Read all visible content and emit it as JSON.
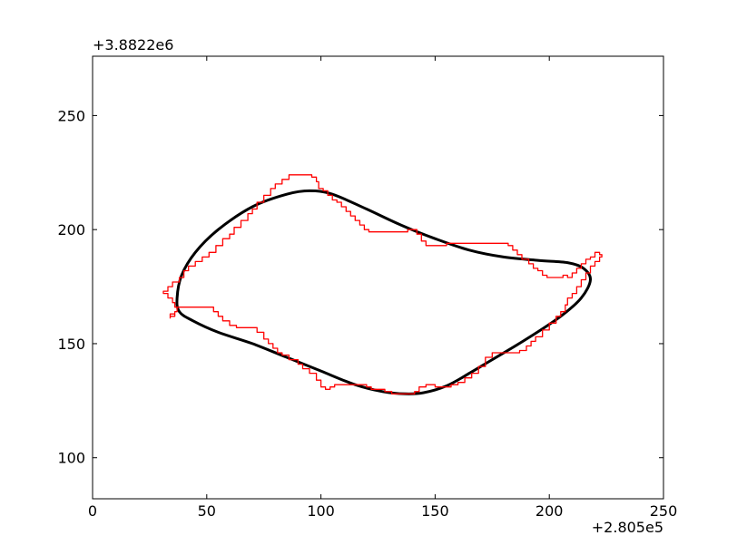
{
  "chart_data": {
    "type": "line",
    "title": "",
    "xlabel": "",
    "ylabel": "",
    "x_offset_label": "+2.805e5",
    "y_offset_label": "+3.8822e6",
    "xlim": [
      0,
      250
    ],
    "ylim": [
      82,
      276
    ],
    "x_ticks": [
      0,
      50,
      100,
      150,
      200,
      250
    ],
    "x_tick_labels": [
      "0",
      "50",
      "100",
      "150",
      "200",
      "250"
    ],
    "y_ticks": [
      100,
      150,
      200,
      250
    ],
    "y_tick_labels": [
      "100",
      "150",
      "200",
      "250"
    ],
    "grid": false,
    "series": [
      {
        "style": "smooth-closed",
        "color": "#000000",
        "points": [
          [
            37,
            170
          ],
          [
            39,
            180
          ],
          [
            45,
            190
          ],
          [
            55,
            200
          ],
          [
            70,
            210
          ],
          [
            85,
            215.5
          ],
          [
            95,
            217
          ],
          [
            105,
            215.5
          ],
          [
            120,
            209
          ],
          [
            135,
            202
          ],
          [
            150,
            196
          ],
          [
            165,
            191
          ],
          [
            180,
            188
          ],
          [
            195,
            186.5
          ],
          [
            208,
            185.5
          ],
          [
            215,
            183
          ],
          [
            218,
            178
          ],
          [
            214,
            170
          ],
          [
            205,
            162
          ],
          [
            190,
            152
          ],
          [
            175,
            143
          ],
          [
            165,
            137
          ],
          [
            155,
            131.5
          ],
          [
            145,
            128.5
          ],
          [
            137,
            128
          ],
          [
            127,
            129
          ],
          [
            115,
            132
          ],
          [
            100,
            138
          ],
          [
            85,
            144
          ],
          [
            70,
            150
          ],
          [
            55,
            155
          ],
          [
            44,
            160
          ],
          [
            38,
            164
          ]
        ]
      },
      {
        "style": "steps",
        "color": "#ff0000",
        "points": [
          [
            34,
            162
          ],
          [
            36,
            164
          ],
          [
            37,
            166
          ],
          [
            40,
            166
          ],
          [
            51,
            166
          ],
          [
            53,
            164
          ],
          [
            55,
            162
          ],
          [
            57,
            160
          ],
          [
            60,
            158
          ],
          [
            63,
            157
          ],
          [
            67,
            157
          ],
          [
            70,
            157
          ],
          [
            72,
            155
          ],
          [
            75,
            152
          ],
          [
            77,
            150
          ],
          [
            79,
            148
          ],
          [
            81,
            146
          ],
          [
            83,
            145
          ],
          [
            86,
            143
          ],
          [
            88,
            143
          ],
          [
            90,
            141
          ],
          [
            92,
            139
          ],
          [
            95,
            137
          ],
          [
            98,
            134
          ],
          [
            100,
            131
          ],
          [
            102,
            130
          ],
          [
            104,
            131
          ],
          [
            106,
            132
          ],
          [
            110,
            132
          ],
          [
            115,
            132
          ],
          [
            118,
            132
          ],
          [
            120,
            131
          ],
          [
            122,
            130
          ],
          [
            125,
            130
          ],
          [
            128,
            129
          ],
          [
            131,
            128
          ],
          [
            135,
            128
          ],
          [
            139,
            128
          ],
          [
            141,
            129
          ],
          [
            143,
            131
          ],
          [
            146,
            132
          ],
          [
            148,
            132
          ],
          [
            150,
            131
          ],
          [
            153,
            131
          ],
          [
            157,
            132
          ],
          [
            160,
            133
          ],
          [
            163,
            135
          ],
          [
            166,
            137
          ],
          [
            169,
            140
          ],
          [
            172,
            144
          ],
          [
            175,
            146
          ],
          [
            179,
            146
          ],
          [
            183,
            146
          ],
          [
            185,
            146
          ],
          [
            187,
            147
          ],
          [
            190,
            149
          ],
          [
            192,
            151
          ],
          [
            194,
            153
          ],
          [
            197,
            156
          ],
          [
            200,
            159
          ],
          [
            203,
            162
          ],
          [
            205,
            164
          ],
          [
            207,
            167
          ],
          [
            208,
            170
          ],
          [
            210,
            172
          ],
          [
            212,
            175
          ],
          [
            214,
            178
          ],
          [
            216,
            181
          ],
          [
            218,
            184
          ],
          [
            220,
            186
          ],
          [
            222,
            188
          ],
          [
            223,
            189
          ],
          [
            222,
            190
          ],
          [
            220,
            188
          ],
          [
            218,
            187
          ],
          [
            216,
            185
          ],
          [
            214,
            183
          ],
          [
            212,
            181
          ],
          [
            210,
            179
          ],
          [
            208,
            180
          ],
          [
            206,
            179
          ],
          [
            202,
            179
          ],
          [
            199,
            180
          ],
          [
            197,
            182
          ],
          [
            195,
            183
          ],
          [
            193,
            185
          ],
          [
            191,
            187
          ],
          [
            188,
            189
          ],
          [
            186,
            191
          ],
          [
            184,
            193
          ],
          [
            182,
            194
          ],
          [
            176,
            194
          ],
          [
            170,
            194
          ],
          [
            163,
            194
          ],
          [
            157,
            194
          ],
          [
            155,
            193
          ],
          [
            150,
            193
          ],
          [
            146,
            195
          ],
          [
            144,
            198
          ],
          [
            142,
            200
          ],
          [
            140,
            200
          ],
          [
            138,
            199
          ],
          [
            132,
            199
          ],
          [
            125,
            199
          ],
          [
            123,
            199
          ],
          [
            121,
            200
          ],
          [
            119,
            202
          ],
          [
            117,
            204
          ],
          [
            115,
            206
          ],
          [
            113,
            208
          ],
          [
            111,
            210
          ],
          [
            109,
            212
          ],
          [
            107,
            213
          ],
          [
            105,
            215
          ],
          [
            103,
            217
          ],
          [
            101,
            218
          ],
          [
            99,
            221
          ],
          [
            98,
            223
          ],
          [
            96,
            224
          ],
          [
            92,
            224
          ],
          [
            88,
            224
          ],
          [
            86,
            222
          ],
          [
            83,
            220
          ],
          [
            80,
            218
          ],
          [
            78,
            215
          ],
          [
            75,
            212
          ],
          [
            72,
            209
          ],
          [
            70,
            207
          ],
          [
            68,
            204
          ],
          [
            65,
            201
          ],
          [
            62,
            198
          ],
          [
            60,
            196
          ],
          [
            57,
            193
          ],
          [
            54,
            190
          ],
          [
            51,
            188
          ],
          [
            48,
            186
          ],
          [
            45,
            184
          ],
          [
            42,
            182
          ],
          [
            40,
            179
          ],
          [
            38,
            177
          ],
          [
            35,
            175
          ],
          [
            33,
            173
          ],
          [
            31,
            172
          ],
          [
            33,
            170
          ],
          [
            35,
            168
          ],
          [
            36,
            166
          ],
          [
            37,
            164
          ],
          [
            36,
            163
          ],
          [
            34,
            161
          ]
        ]
      }
    ]
  }
}
